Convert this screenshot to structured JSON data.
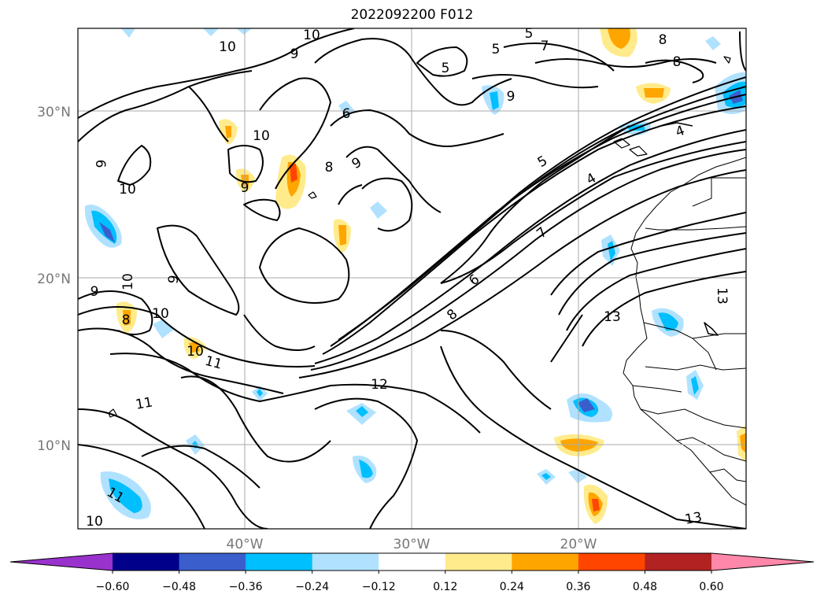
{
  "title": "2022092200 F012",
  "map": {
    "lat_labels": [
      "30°N",
      "20°N",
      "10°N"
    ],
    "lon_labels": [
      "40°W",
      "30°W",
      "20°W"
    ],
    "contour_labels": [
      "10",
      "9",
      "10",
      "5",
      "5",
      "7",
      "6",
      "8",
      "5",
      "8",
      "9",
      "6",
      "10",
      "8",
      "9",
      "10",
      "9",
      "9",
      "10",
      "9",
      "10",
      "8",
      "10",
      "11",
      "11",
      "12",
      "5",
      "4",
      "7",
      "6",
      "8",
      "13",
      "13",
      "4",
      "13",
      "11",
      "10"
    ]
  },
  "colorbar": {
    "ticks": [
      "−0.60",
      "−0.48",
      "−0.36",
      "−0.24",
      "−0.12",
      "0.12",
      "0.24",
      "0.36",
      "0.48",
      "0.60"
    ],
    "colors": [
      "#9932cc",
      "#00008b",
      "#3a5fcd",
      "#00bfff",
      "#b0e2ff",
      "#ffffff",
      "#ffeb8c",
      "#ffa500",
      "#ff4500",
      "#b22222",
      "#ff88aa"
    ]
  }
}
